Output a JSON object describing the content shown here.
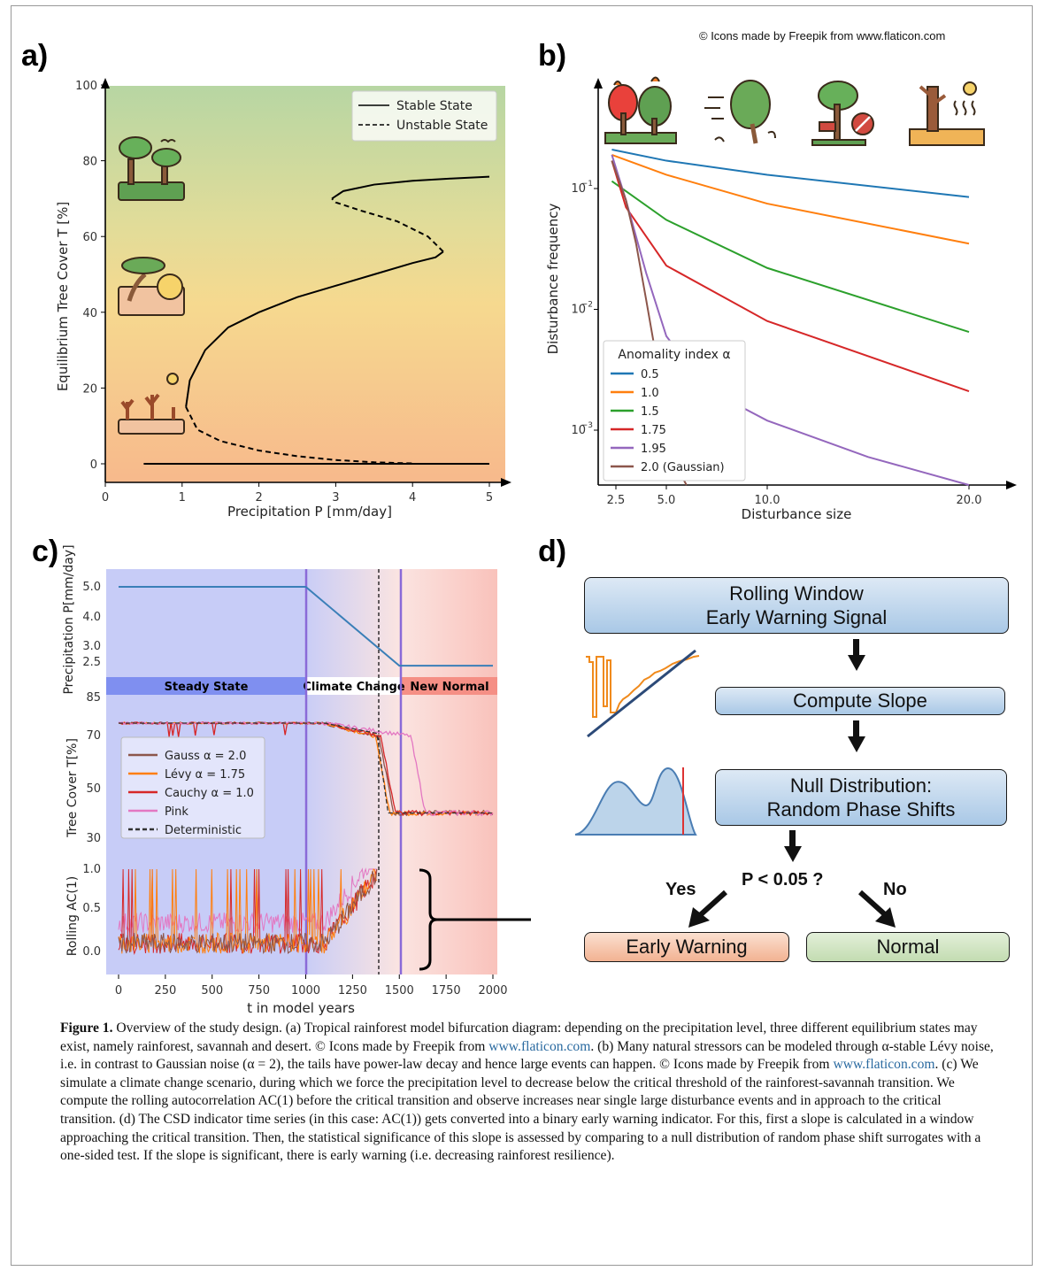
{
  "credit": "© Icons made by Freepik from www.flaticon.com",
  "panels": {
    "a": "a)",
    "b": "b)",
    "c": "c)",
    "d": "d)"
  },
  "icons": [
    "rainforest-icon",
    "savannah-icon",
    "desert-icon",
    "forest-fire-icon",
    "windstorm-icon",
    "logging-icon",
    "drought-icon"
  ],
  "chart_data": [
    {
      "id": "a",
      "type": "line",
      "xlabel": "Precipitation P [mm/day]",
      "ylabel": "Equilibrium Tree Cover T [%]",
      "xlim": [
        0,
        5
      ],
      "ylim": [
        0,
        100
      ],
      "xticks": [
        0,
        1,
        2,
        3,
        4,
        5
      ],
      "yticks": [
        0,
        20,
        40,
        60,
        80,
        100
      ],
      "legend": [
        "Stable State",
        "Unstable State"
      ],
      "legend_position": "top-right",
      "series": [
        {
          "name": "Stable State",
          "style": "solid",
          "x": [
            0.5,
            5.0
          ],
          "y": [
            0,
            0
          ]
        },
        {
          "name": "Stable State",
          "style": "solid",
          "x": [
            1.05,
            1.1,
            1.3,
            1.6,
            2.0,
            2.5,
            3.0,
            3.5,
            4.0,
            4.3,
            4.4
          ],
          "y": [
            15,
            22,
            30,
            36,
            40,
            44,
            47,
            50,
            53,
            54.5,
            56
          ]
        },
        {
          "name": "Unstable State",
          "style": "dashed",
          "x": [
            4.4,
            4.2,
            3.8,
            3.3,
            3.0,
            2.95
          ],
          "y": [
            56,
            60,
            64,
            67,
            69,
            70
          ]
        },
        {
          "name": "Stable State",
          "style": "solid",
          "x": [
            2.95,
            3.1,
            3.5,
            4.0,
            4.5,
            5.0
          ],
          "y": [
            70,
            72,
            73.7,
            74.7,
            75.3,
            75.8
          ]
        },
        {
          "name": "Unstable State",
          "style": "dashed",
          "x": [
            1.05,
            1.2,
            1.5,
            2.0,
            2.5,
            3.0,
            3.5,
            4.0
          ],
          "y": [
            15,
            9,
            6,
            3.5,
            2,
            1,
            0.4,
            0.1
          ]
        }
      ]
    },
    {
      "id": "b",
      "type": "line",
      "yscale": "log",
      "xlabel": "Disturbance size",
      "ylabel": "Disturbance frequency",
      "xticks": [
        2.5,
        5.0,
        10.0,
        20.0
      ],
      "yticks": [
        "10^-3",
        "10^-2",
        "10^-1"
      ],
      "legend_title": "Anomality index α",
      "legend_position": "bottom-left",
      "series": [
        {
          "name": "0.5",
          "color": "#1f77b4",
          "x": [
            2.3,
            5,
            10,
            20
          ],
          "y": [
            0.21,
            0.17,
            0.13,
            0.085
          ]
        },
        {
          "name": "1.0",
          "color": "#ff7f0e",
          "x": [
            2.3,
            5,
            10,
            20
          ],
          "y": [
            0.19,
            0.13,
            0.075,
            0.035
          ]
        },
        {
          "name": "1.5",
          "color": "#2ca02c",
          "x": [
            2.3,
            5,
            10,
            20
          ],
          "y": [
            0.115,
            0.055,
            0.022,
            0.0065
          ]
        },
        {
          "name": "1.75",
          "color": "#d62728",
          "x": [
            2.3,
            3,
            5,
            10,
            20
          ],
          "y": [
            0.17,
            0.07,
            0.023,
            0.008,
            0.0021
          ]
        },
        {
          "name": "1.95",
          "color": "#9467bd",
          "x": [
            2.3,
            3,
            4,
            5,
            7,
            10,
            15,
            20
          ],
          "y": [
            0.19,
            0.08,
            0.02,
            0.006,
            0.0022,
            0.0012,
            0.0006,
            0.00035
          ]
        },
        {
          "name": "2.0 (Gaussian)",
          "color": "#8c564b",
          "x": [
            2.3,
            3,
            3.5,
            4,
            4.5,
            5,
            5.5,
            6
          ],
          "y": [
            0.17,
            0.08,
            0.035,
            0.012,
            0.004,
            0.0012,
            0.0005,
            0.00033
          ]
        }
      ]
    },
    {
      "id": "c",
      "type": "line",
      "xlabel": "t in model years",
      "xticks": [
        0,
        250,
        500,
        750,
        1000,
        1250,
        1500,
        1750,
        2000
      ],
      "phases": [
        "Steady State",
        "Climate Change",
        "New Normal"
      ],
      "precip": {
        "ylabel": "Precipitation P[mm/day]",
        "yticks": [
          "5.0",
          "4.0",
          "3.0",
          "2.5"
        ],
        "x": [
          0,
          1000,
          1500,
          2000
        ],
        "y": [
          5.0,
          5.0,
          2.3,
          2.3
        ]
      },
      "tree": {
        "ylabel": "Tree Cover T[%]",
        "yticks": [
          "85",
          "70",
          "50",
          "30"
        ],
        "legend": [
          "Gauss α = 2.0",
          "Lévy α = 1.75",
          "Cauchy α = 1.0",
          "Pink",
          "Deterministic"
        ],
        "legend_position": "center-left"
      },
      "ac": {
        "ylabel": "Rolling AC(1)",
        "yticks": [
          "1.0",
          "0.5",
          "0.0"
        ]
      }
    }
  ],
  "flow": {
    "rolling": "Rolling Window\nEarly Warning Signal",
    "slope": "Compute Slope",
    "null": "Null Distribution:\nRandom Phase Shifts",
    "question": "P < 0.05 ?",
    "yes": "Yes",
    "no": "No",
    "warning": "Early Warning",
    "normal": "Normal"
  },
  "caption": {
    "label": "Figure 1.",
    "p1": " Overview of the study design. (a) Tropical rainforest model bifurcation diagram: depending on the precipitation level, three different equilibrium states may exist, namely rainforest, savannah and desert. © Icons made by Freepik from ",
    "link1": "www.flaticon.com",
    "p2": ". (b) Many natural stressors can be modeled through α-stable Lévy noise, i.e. in contrast to Gaussian noise (α = 2), the tails have power-law decay and hence large events can happen. © Icons made by Freepik from ",
    "link2": "www.flaticon.com",
    "p3": ". (c) We simulate a climate change scenario, during which we force the precipitation level to decrease below the critical threshold of the rainforest-savannah transition. We compute the rolling autocorrelation AC(1) before the critical transition and observe increases near single large disturbance events and in approach to the critical transition. (d) The CSD indicator time series (in this case: AC(1)) gets converted into a binary early warning indicator. For this, first a slope is calculated in a window approaching the critical transition. Then, the statistical significance of this slope is assessed by comparing to a null distribution of random phase shift surrogates with a one-sided test. If the slope is significant, there is early warning (i.e. decreasing rainforest resilience)."
  }
}
